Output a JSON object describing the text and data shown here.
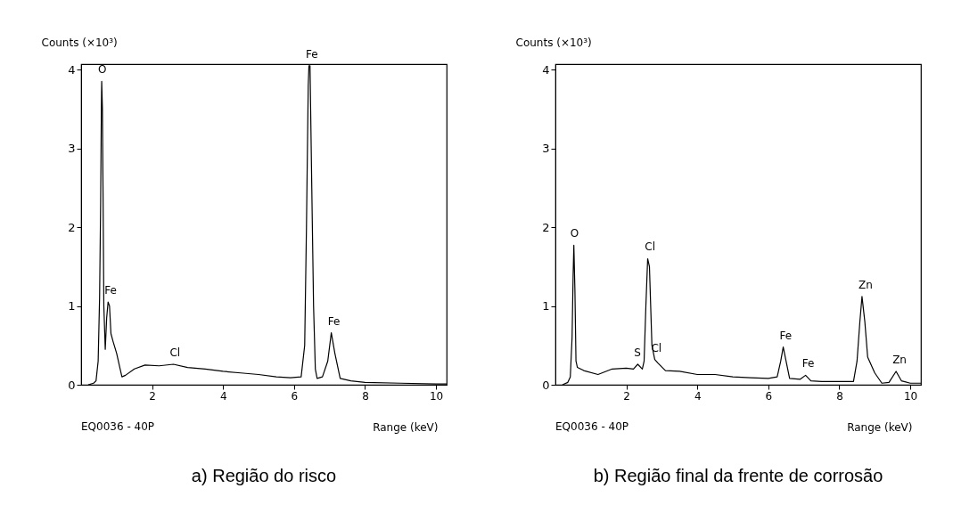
{
  "chart_data": [
    {
      "type": "line",
      "title": "a) Região do risco",
      "xlabel": "Range (keV)",
      "ylabel": "Counts (×10³)",
      "xlim": [
        0,
        10.3
      ],
      "ylim": [
        0,
        4.07
      ],
      "xticks": [
        2,
        4,
        6,
        8,
        10
      ],
      "yticks": [
        0,
        1,
        2,
        3,
        4
      ],
      "grid": false,
      "marker": "none",
      "line_style": "solid",
      "series": [
        {
          "color": "#000000",
          "x": [
            0.2,
            0.35,
            0.42,
            0.48,
            0.52,
            0.55,
            0.57,
            0.58,
            0.6,
            0.62,
            0.64,
            0.68,
            0.72,
            0.76,
            0.8,
            0.84,
            0.9,
            1.0,
            1.1,
            1.15,
            1.25,
            1.5,
            1.8,
            2.2,
            2.6,
            3.0,
            3.5,
            4.0,
            4.5,
            5.0,
            5.5,
            5.9,
            6.2,
            6.3,
            6.35,
            6.4,
            6.42,
            6.45,
            6.5,
            6.55,
            6.6,
            6.65,
            6.8,
            6.95,
            7.05,
            7.15,
            7.3,
            7.6,
            8.0,
            9.0,
            10.0,
            10.3
          ],
          "values": [
            0,
            0.02,
            0.05,
            0.3,
            1.1,
            2.3,
            3.5,
            3.85,
            3.5,
            2.3,
            1.0,
            0.45,
            0.85,
            1.05,
            1.0,
            0.65,
            0.55,
            0.4,
            0.2,
            0.1,
            0.12,
            0.2,
            0.25,
            0.24,
            0.26,
            0.22,
            0.2,
            0.17,
            0.15,
            0.13,
            0.1,
            0.09,
            0.1,
            0.5,
            2.0,
            3.8,
            4.05,
            4.05,
            2.5,
            1.0,
            0.2,
            0.08,
            0.1,
            0.3,
            0.66,
            0.4,
            0.08,
            0.05,
            0.03,
            0.02,
            0.01,
            0.01
          ]
        }
      ],
      "annotations": [
        {
          "text": "O",
          "x": 0.58,
          "y": 3.85
        },
        {
          "text": "Fe",
          "x": 0.76,
          "y": 1.05
        },
        {
          "text": "Cl",
          "x": 2.6,
          "y": 0.26
        },
        {
          "text": "Fe",
          "x": 6.43,
          "y": 4.05
        },
        {
          "text": "Fe",
          "x": 7.05,
          "y": 0.66
        },
        "EQ0036 - 40P"
      ]
    },
    {
      "type": "line",
      "title": "b) Região final da frente de corrosão",
      "xlabel": "Range (keV)",
      "ylabel": "Counts (×10³)",
      "xlim": [
        0,
        10.3
      ],
      "ylim": [
        0,
        4.07
      ],
      "xticks": [
        2,
        4,
        6,
        8,
        10
      ],
      "yticks": [
        0,
        1,
        2,
        3,
        4
      ],
      "grid": false,
      "marker": "none",
      "line_style": "solid",
      "series": [
        {
          "color": "#000000",
          "x": [
            0.2,
            0.35,
            0.42,
            0.47,
            0.5,
            0.52,
            0.55,
            0.58,
            0.62,
            0.8,
            1.2,
            1.6,
            2.0,
            2.2,
            2.32,
            2.45,
            2.5,
            2.55,
            2.6,
            2.65,
            2.72,
            2.8,
            2.9,
            3.1,
            3.5,
            4.0,
            4.5,
            5.0,
            5.5,
            6.0,
            6.25,
            6.35,
            6.42,
            6.5,
            6.6,
            6.9,
            7.05,
            7.2,
            7.5,
            8.0,
            8.4,
            8.5,
            8.58,
            8.64,
            8.72,
            8.8,
            9.0,
            9.2,
            9.4,
            9.6,
            9.75,
            10.0,
            10.3
          ],
          "values": [
            0,
            0.03,
            0.1,
            0.6,
            1.4,
            1.77,
            1.2,
            0.3,
            0.22,
            0.18,
            0.13,
            0.2,
            0.21,
            0.2,
            0.26,
            0.2,
            0.3,
            1.0,
            1.6,
            1.5,
            0.5,
            0.32,
            0.27,
            0.18,
            0.17,
            0.13,
            0.13,
            0.1,
            0.09,
            0.08,
            0.1,
            0.3,
            0.48,
            0.3,
            0.08,
            0.07,
            0.12,
            0.05,
            0.04,
            0.04,
            0.04,
            0.3,
            0.8,
            1.12,
            0.8,
            0.35,
            0.15,
            0.02,
            0.03,
            0.17,
            0.05,
            0.02,
            0.02
          ]
        }
      ],
      "annotations": [
        {
          "text": "O",
          "x": 0.52,
          "y": 1.77
        },
        {
          "text": "S",
          "x": 2.32,
          "y": 0.26
        },
        {
          "text": "Cl",
          "x": 2.62,
          "y": 1.6
        },
        {
          "text": "Cl",
          "x": 2.8,
          "y": 0.32
        },
        {
          "text": "Fe",
          "x": 6.42,
          "y": 0.48
        },
        {
          "text": "Fe",
          "x": 7.05,
          "y": 0.12
        },
        {
          "text": "Zn",
          "x": 8.64,
          "y": 1.12
        },
        {
          "text": "Zn",
          "x": 9.6,
          "y": 0.17
        },
        "EQ0036 - 40P"
      ]
    }
  ]
}
